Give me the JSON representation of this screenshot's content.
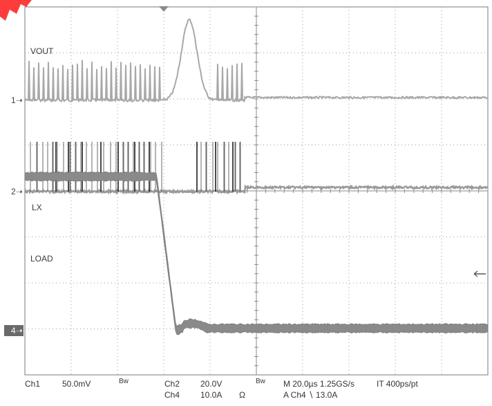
{
  "chart_data": {
    "type": "line",
    "title": "",
    "grid": true,
    "time_per_division": "20.0µs",
    "divisions_x": 10,
    "divisions_y": 8,
    "trace_labels": {
      "vout": "VOUT",
      "lx": "LX",
      "load": "LOAD"
    },
    "ground_markers": {
      "ch1": "1",
      "ch2": "2",
      "ch4": "4"
    },
    "series": [
      {
        "name": "VOUT",
        "channel": "Ch1",
        "scale": "50.0mV",
        "ripple_until_div": 4.75,
        "transient_peak_div": 1.75,
        "transient_at_div": 3.55
      },
      {
        "name": "LX",
        "channel": "Ch2",
        "scale": "20.0V",
        "switching_until_div": 4.75
      },
      {
        "name": "LOAD",
        "channel": "Ch4",
        "scale": "10.0A",
        "high_level_div": 3.35,
        "step_at_div": 2.9,
        "low_level_div": 0.05
      }
    ]
  },
  "status": {
    "ch1_name": "Ch1",
    "ch1_scale": "50.0mV",
    "bw1": "Bw",
    "ch2_name": "Ch2",
    "ch2_scale": "20.0V",
    "bw2": "Bw",
    "ch4_name": "Ch4",
    "ch4_scale": "10.0A",
    "ohm": "Ω",
    "timebase": "M 20.0µs 1.25GS/s",
    "record": "IT 400ps/pt",
    "trigger": "A  Ch4  ∖  13.0A"
  }
}
